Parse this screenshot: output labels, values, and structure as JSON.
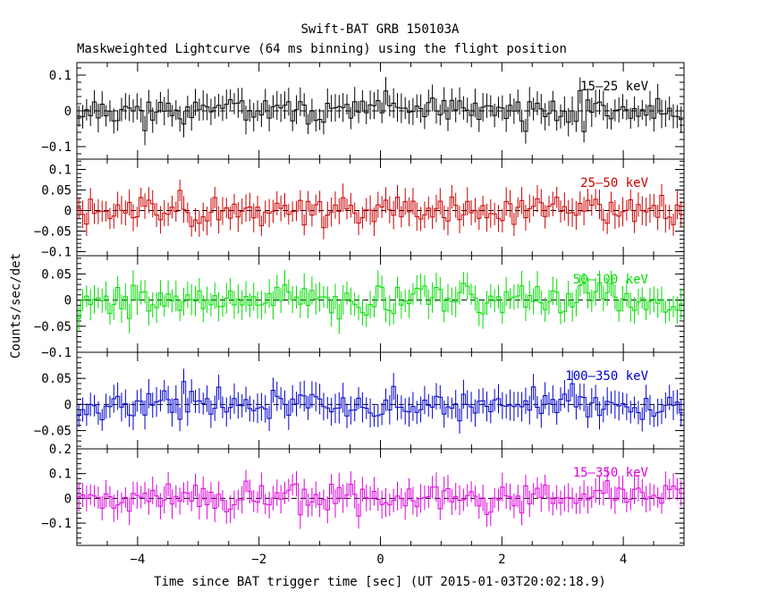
{
  "chart_data": {
    "type": "line",
    "title": "Swift-BAT GRB 150103A",
    "subtitle": "Maskweighted Lightcurve (64 ms binning) using the flight position",
    "xlabel": "Time since BAT trigger time [sec] (UT 2015-01-03T20:02:18.9)",
    "ylabel": "Counts/sec/det",
    "xlim": [
      -5,
      5
    ],
    "bin_width_sec": 0.064,
    "x_ticks": [
      -4,
      -2,
      0,
      2,
      4
    ],
    "x_tick_labels": [
      "−4",
      "−2",
      "0",
      "2",
      "4"
    ],
    "panels": [
      {
        "name": "15-25 keV",
        "label": "15–25 keV",
        "color": "#000000",
        "ylim": [
          -0.135,
          0.135
        ],
        "y_ticks": [
          -0.1,
          0,
          0.1
        ],
        "y_tick_labels": [
          "−0.1",
          "0",
          "0.1"
        ],
        "amplitude": 0.03,
        "error": 0.035,
        "seed": 11
      },
      {
        "name": "25-50 keV",
        "label": "25–50 keV",
        "color": "#cc0000",
        "ylim": [
          -0.11,
          0.125
        ],
        "y_ticks": [
          -0.1,
          -0.05,
          0,
          0.05,
          0.1
        ],
        "y_tick_labels": [
          "−0.1",
          "−0.05",
          "0",
          "0.05",
          "0.1"
        ],
        "amplitude": 0.025,
        "error": 0.03,
        "seed": 23
      },
      {
        "name": "50-100 keV",
        "label": "50–100 keV",
        "color": "#00dd00",
        "ylim": [
          -0.1,
          0.085
        ],
        "y_ticks": [
          -0.1,
          -0.05,
          0,
          0.05
        ],
        "y_tick_labels": [
          "−0.1",
          "−0.05",
          "0",
          "0.05"
        ],
        "amplitude": 0.022,
        "error": 0.025,
        "seed": 37
      },
      {
        "name": "100-350 keV",
        "label": "100–350 keV",
        "color": "#0000cc",
        "ylim": [
          -0.085,
          0.1
        ],
        "y_ticks": [
          -0.05,
          0,
          0.05
        ],
        "y_tick_labels": [
          "−0.05",
          "0",
          "0.05"
        ],
        "amplitude": 0.022,
        "error": 0.025,
        "seed": 53
      },
      {
        "name": "15-350 keV",
        "label": "15–350 keV",
        "color": "#dd00dd",
        "ylim": [
          -0.19,
          0.2
        ],
        "y_ticks": [
          -0.1,
          0,
          0.1,
          0.2
        ],
        "y_tick_labels": [
          "−0.1",
          "0",
          "0.1",
          "0.2"
        ],
        "amplitude": 0.045,
        "error": 0.05,
        "seed": 71
      }
    ]
  }
}
